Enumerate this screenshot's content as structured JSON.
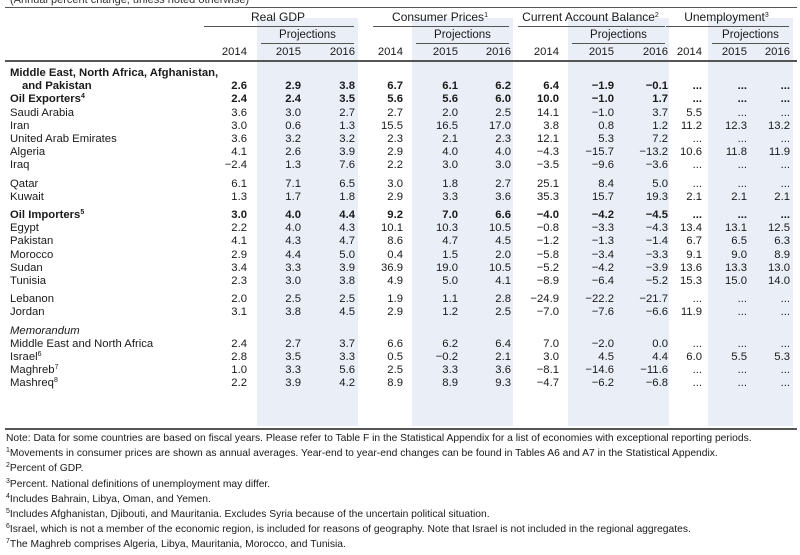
{
  "top_fragment": "(Annual percent change, unless noted otherwise)",
  "groups": [
    {
      "label": "Real GDP",
      "sup": ""
    },
    {
      "label": "Consumer Prices",
      "sup": "1"
    },
    {
      "label": "Current Account Balance",
      "sup": "2"
    },
    {
      "label": "Unemployment",
      "sup": "3"
    }
  ],
  "projections_label": "Projections",
  "years": [
    "2014",
    "2015",
    "2016"
  ],
  "rows": [
    {
      "label": "Middle East, North Africa, Afghanistan,",
      "bold": true,
      "values": []
    },
    {
      "label": "and Pakistan",
      "bold": true,
      "indent": true,
      "values": [
        "2.6",
        "2.9",
        "3.8",
        "6.7",
        "6.1",
        "6.2",
        "6.4",
        "−1.9",
        "−0.1",
        "...",
        "...",
        "..."
      ]
    },
    {
      "label": "Oil Exporters",
      "sup": "4",
      "bold": true,
      "values": [
        "2.4",
        "2.4",
        "3.5",
        "5.6",
        "5.6",
        "6.0",
        "10.0",
        "−1.0",
        "1.7",
        "...",
        "...",
        "..."
      ]
    },
    {
      "label": "Saudi Arabia",
      "values": [
        "3.6",
        "3.0",
        "2.7",
        "2.7",
        "2.0",
        "2.5",
        "14.1",
        "−1.0",
        "3.7",
        "5.5",
        "...",
        "..."
      ]
    },
    {
      "label": "Iran",
      "values": [
        "3.0",
        "0.6",
        "1.3",
        "15.5",
        "16.5",
        "17.0",
        "3.8",
        "0.8",
        "1.2",
        "11.2",
        "12.3",
        "13.2"
      ]
    },
    {
      "label": "United Arab Emirates",
      "values": [
        "3.6",
        "3.2",
        "3.2",
        "2.3",
        "2.1",
        "2.3",
        "12.1",
        "5.3",
        "7.2",
        "...",
        "...",
        "..."
      ]
    },
    {
      "label": "Algeria",
      "values": [
        "4.1",
        "2.6",
        "3.9",
        "2.9",
        "4.0",
        "4.0",
        "−4.3",
        "−15.7",
        "−13.2",
        "10.6",
        "11.8",
        "11.9"
      ]
    },
    {
      "label": "Iraq",
      "values": [
        "−2.4",
        "1.3",
        "7.6",
        "2.2",
        "3.0",
        "3.0",
        "−3.5",
        "−9.6",
        "−3.6",
        "...",
        "...",
        "..."
      ]
    },
    {
      "label": "Qatar",
      "gap": true,
      "values": [
        "6.1",
        "7.1",
        "6.5",
        "3.0",
        "1.8",
        "2.7",
        "25.1",
        "8.4",
        "5.0",
        "...",
        "...",
        "..."
      ]
    },
    {
      "label": "Kuwait",
      "values": [
        "1.3",
        "1.7",
        "1.8",
        "2.9",
        "3.3",
        "3.6",
        "35.3",
        "15.7",
        "19.3",
        "2.1",
        "2.1",
        "2.1"
      ]
    },
    {
      "label": "Oil Importers",
      "sup": "5",
      "bold": true,
      "gap": true,
      "values": [
        "3.0",
        "4.0",
        "4.4",
        "9.2",
        "7.0",
        "6.6",
        "−4.0",
        "−4.2",
        "−4.5",
        "...",
        "...",
        "..."
      ]
    },
    {
      "label": "Egypt",
      "values": [
        "2.2",
        "4.0",
        "4.3",
        "10.1",
        "10.3",
        "10.5",
        "−0.8",
        "−3.3",
        "−4.3",
        "13.4",
        "13.1",
        "12.5"
      ]
    },
    {
      "label": "Pakistan",
      "values": [
        "4.1",
        "4.3",
        "4.7",
        "8.6",
        "4.7",
        "4.5",
        "−1.2",
        "−1.3",
        "−1.4",
        "6.7",
        "6.5",
        "6.3"
      ]
    },
    {
      "label": "Morocco",
      "values": [
        "2.9",
        "4.4",
        "5.0",
        "0.4",
        "1.5",
        "2.0",
        "−5.8",
        "−3.4",
        "−3.3",
        "9.1",
        "9.0",
        "8.9"
      ]
    },
    {
      "label": "Sudan",
      "values": [
        "3.4",
        "3.3",
        "3.9",
        "36.9",
        "19.0",
        "10.5",
        "−5.2",
        "−4.2",
        "−3.9",
        "13.6",
        "13.3",
        "13.0"
      ]
    },
    {
      "label": "Tunisia",
      "values": [
        "2.3",
        "3.0",
        "3.8",
        "4.9",
        "5.0",
        "4.1",
        "−8.9",
        "−6.4",
        "−5.2",
        "15.3",
        "15.0",
        "14.0"
      ]
    },
    {
      "label": "Lebanon",
      "gap": true,
      "values": [
        "2.0",
        "2.5",
        "2.5",
        "1.9",
        "1.1",
        "2.8",
        "−24.9",
        "−22.2",
        "−21.7",
        "...",
        "...",
        "..."
      ]
    },
    {
      "label": "Jordan",
      "values": [
        "3.1",
        "3.8",
        "4.5",
        "2.9",
        "1.2",
        "2.5",
        "−7.0",
        "−7.6",
        "−6.6",
        "11.9",
        "...",
        "..."
      ]
    },
    {
      "label": "Memorandum",
      "italic": true,
      "gap": true,
      "values": []
    },
    {
      "label": "Middle East and North Africa",
      "values": [
        "2.4",
        "2.7",
        "3.7",
        "6.6",
        "6.2",
        "6.4",
        "7.0",
        "−2.0",
        "0.0",
        "...",
        "...",
        "..."
      ]
    },
    {
      "label": "Israel",
      "sup": "6",
      "values": [
        "2.8",
        "3.5",
        "3.3",
        "0.5",
        "−0.2",
        "2.1",
        "3.0",
        "4.5",
        "4.4",
        "6.0",
        "5.5",
        "5.3"
      ]
    },
    {
      "label": "Maghreb",
      "sup": "7",
      "values": [
        "1.0",
        "3.3",
        "5.6",
        "2.5",
        "3.3",
        "3.6",
        "−8.1",
        "−14.6",
        "−11.6",
        "...",
        "...",
        "..."
      ]
    },
    {
      "label": "Mashreq",
      "sup": "8",
      "values": [
        "2.2",
        "3.9",
        "4.2",
        "8.9",
        "8.9",
        "9.3",
        "−4.7",
        "−6.2",
        "−6.8",
        "...",
        "...",
        "..."
      ]
    }
  ],
  "notes": [
    {
      "sup": "",
      "text": "Note: Data for some countries are based on fiscal years. Please refer to Table F in the Statistical Appendix for a list of economies with exceptional reporting periods."
    },
    {
      "sup": "1",
      "text": "Movements in consumer prices are shown as annual averages. Year-end to year-end changes can be found in Tables A6 and A7 in the Statistical Appendix."
    },
    {
      "sup": "2",
      "text": "Percent of GDP."
    },
    {
      "sup": "3",
      "text": "Percent. National definitions of unemployment may differ."
    },
    {
      "sup": "4",
      "text": "Includes Bahrain, Libya, Oman, and Yemen."
    },
    {
      "sup": "5",
      "text": "Includes Afghanistan, Djibouti, and Mauritania. Excludes Syria because of the uncertain political situation."
    },
    {
      "sup": "6",
      "text": "Israel, which is not a member of the economic region, is included for reasons of geography. Note that Israel is not included in the regional aggregates."
    },
    {
      "sup": "7",
      "text": "The Maghreb comprises Algeria, Libya, Mauritania, Morocco, and Tunisia."
    }
  ]
}
